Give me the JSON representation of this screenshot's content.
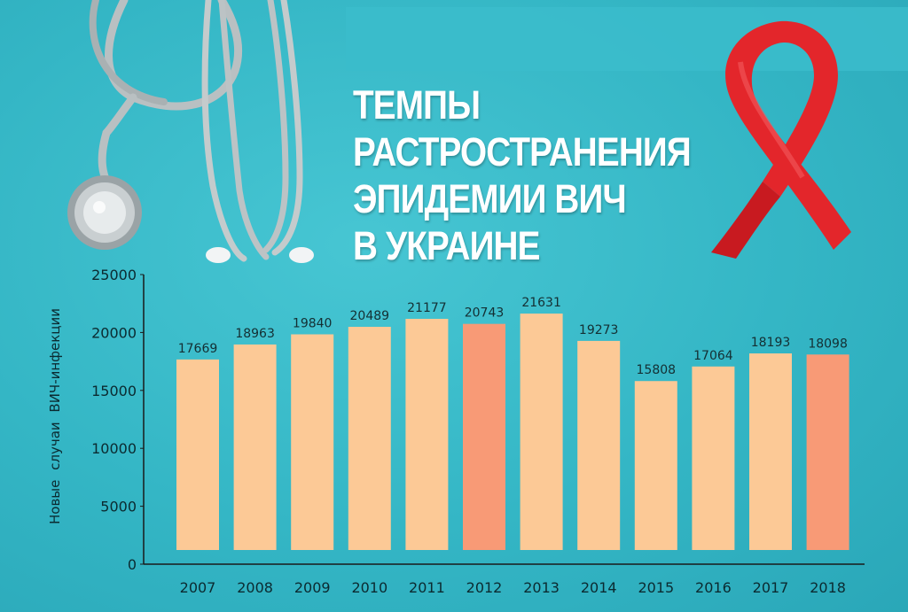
{
  "title_lines": [
    "ТЕМПЫ",
    "РАСТРОСТРАНЕНИЯ",
    "ЭПИДЕМИИ ВИЧ",
    "В УКРАИНЕ"
  ],
  "colors": {
    "bar": "#fcc996",
    "bar_highlight": "#f89a76",
    "ribbon": "#e3262b",
    "axis": "#1a1a1a"
  },
  "chart_data": {
    "type": "bar",
    "ylabel": "Новые случаи ВИЧ-инфекции",
    "xlabel": "",
    "categories": [
      "2007",
      "2008",
      "2009",
      "2010",
      "2011",
      "2012",
      "2013",
      "2014",
      "2015",
      "2016",
      "2017",
      "2018"
    ],
    "values": [
      17669,
      18963,
      19840,
      20489,
      21177,
      20743,
      21631,
      19273,
      15808,
      17064,
      18193,
      18098
    ],
    "highlight": [
      "2012",
      "2018"
    ],
    "ylim": [
      0,
      25000
    ],
    "yticks": [
      0,
      5000,
      10000,
      15000,
      20000,
      25000
    ],
    "grid": false
  }
}
